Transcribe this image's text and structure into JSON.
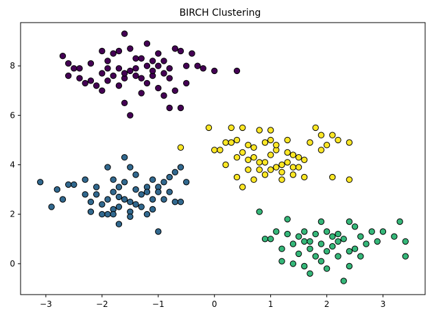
{
  "chart_data": {
    "type": "scatter",
    "title": "BIRCH Clustering",
    "xlabel": "",
    "ylabel": "",
    "xlim": [
      -3.45,
      3.75
    ],
    "ylim": [
      -1.25,
      9.75
    ],
    "xticks": [
      -3,
      -2,
      -1,
      0,
      1,
      2,
      3
    ],
    "yticks": [
      0,
      2,
      4,
      6,
      8
    ],
    "grid": false,
    "legend": "none",
    "series": [
      {
        "color": "#440154",
        "points": [
          [
            -2.7,
            8.4
          ],
          [
            -2.6,
            8.1
          ],
          [
            -2.5,
            7.9
          ],
          [
            -2.4,
            7.5
          ],
          [
            -2.2,
            7.4
          ],
          [
            -2.0,
            7.0
          ],
          [
            -1.9,
            7.4
          ],
          [
            -1.8,
            8.5
          ],
          [
            -1.6,
            9.3
          ],
          [
            -1.5,
            8.7
          ],
          [
            -1.4,
            7.9
          ],
          [
            -1.3,
            8.3
          ],
          [
            -1.2,
            8.9
          ],
          [
            -1.1,
            8.2
          ],
          [
            -1.0,
            8.5
          ],
          [
            -0.9,
            7.7
          ],
          [
            -0.8,
            7.9
          ],
          [
            -0.7,
            8.7
          ],
          [
            -0.6,
            8.6
          ],
          [
            -0.5,
            8.0
          ],
          [
            -0.4,
            8.5
          ],
          [
            -0.2,
            7.9
          ],
          [
            0.0,
            7.8
          ],
          [
            0.4,
            7.8
          ],
          [
            -1.5,
            6.0
          ],
          [
            -0.8,
            6.3
          ],
          [
            -1.0,
            7.1
          ],
          [
            -1.2,
            7.3
          ],
          [
            -1.6,
            7.5
          ],
          [
            -1.7,
            7.9
          ],
          [
            -2.0,
            8.6
          ],
          [
            -2.1,
            7.2
          ],
          [
            -2.3,
            7.3
          ],
          [
            -1.3,
            6.9
          ],
          [
            -0.6,
            6.3
          ],
          [
            -0.9,
            6.8
          ],
          [
            -1.1,
            7.6
          ],
          [
            -1.4,
            7.6
          ],
          [
            -1.8,
            7.6
          ],
          [
            -2.6,
            7.6
          ],
          [
            -1.9,
            7.9
          ],
          [
            -1.7,
            7.2
          ],
          [
            -1.5,
            7.8
          ],
          [
            -1.0,
            8.0
          ],
          [
            -0.7,
            7.0
          ],
          [
            -0.3,
            8.0
          ],
          [
            -1.2,
            8.0
          ],
          [
            -2.2,
            8.1
          ],
          [
            -1.6,
            6.5
          ],
          [
            -0.8,
            7.5
          ],
          [
            -1.4,
            8.3
          ],
          [
            -1.9,
            8.2
          ],
          [
            -2.0,
            7.7
          ],
          [
            -1.1,
            7.8
          ],
          [
            -0.5,
            7.3
          ],
          [
            -1.3,
            7.5
          ],
          [
            -0.9,
            8.2
          ],
          [
            -1.6,
            7.7
          ],
          [
            -2.4,
            7.9
          ],
          [
            -1.7,
            8.6
          ]
        ]
      },
      {
        "color": "#31688e",
        "points": [
          [
            -3.1,
            3.3
          ],
          [
            -2.9,
            2.3
          ],
          [
            -2.8,
            3.0
          ],
          [
            -2.7,
            2.6
          ],
          [
            -2.6,
            3.2
          ],
          [
            -2.5,
            3.2
          ],
          [
            -2.3,
            3.4
          ],
          [
            -2.2,
            2.5
          ],
          [
            -2.1,
            2.8
          ],
          [
            -2.0,
            2.4
          ],
          [
            -1.9,
            3.9
          ],
          [
            -1.8,
            2.9
          ],
          [
            -1.7,
            1.6
          ],
          [
            -1.6,
            4.3
          ],
          [
            -1.5,
            3.9
          ],
          [
            -1.4,
            2.4
          ],
          [
            -1.3,
            2.8
          ],
          [
            -1.2,
            3.1
          ],
          [
            -1.1,
            2.6
          ],
          [
            -1.0,
            1.3
          ],
          [
            -0.9,
            3.3
          ],
          [
            -0.8,
            2.9
          ],
          [
            -0.7,
            3.7
          ],
          [
            -0.6,
            3.9
          ],
          [
            -0.5,
            3.3
          ],
          [
            -0.6,
            2.5
          ],
          [
            -1.7,
            2.3
          ],
          [
            -1.8,
            3.4
          ],
          [
            -2.0,
            2.0
          ],
          [
            -1.5,
            2.1
          ],
          [
            -1.9,
            2.6
          ],
          [
            -1.6,
            3.3
          ],
          [
            -1.2,
            2.0
          ],
          [
            -0.8,
            3.5
          ],
          [
            -1.0,
            3.1
          ],
          [
            -1.4,
            3.0
          ],
          [
            -1.7,
            3.1
          ],
          [
            -2.1,
            3.1
          ],
          [
            -1.3,
            2.3
          ],
          [
            -0.9,
            2.6
          ],
          [
            -1.5,
            1.9
          ],
          [
            -1.8,
            2.2
          ],
          [
            -1.1,
            3.4
          ],
          [
            -1.6,
            2.6
          ],
          [
            -2.2,
            2.1
          ],
          [
            -1.9,
            2.0
          ],
          [
            -1.4,
            3.6
          ],
          [
            -1.0,
            2.9
          ],
          [
            -0.7,
            2.5
          ],
          [
            -1.2,
            2.9
          ],
          [
            -1.7,
            2.7
          ],
          [
            -2.3,
            2.8
          ],
          [
            -1.5,
            2.5
          ],
          [
            -1.1,
            2.2
          ],
          [
            -1.8,
            2.0
          ]
        ]
      },
      {
        "color": "#35b779",
        "points": [
          [
            0.8,
            2.1
          ],
          [
            0.9,
            1.0
          ],
          [
            1.1,
            1.3
          ],
          [
            1.2,
            0.6
          ],
          [
            1.3,
            1.8
          ],
          [
            1.4,
            0.0
          ],
          [
            1.5,
            1.1
          ],
          [
            1.6,
            0.9
          ],
          [
            1.7,
            -0.4
          ],
          [
            1.8,
            1.2
          ],
          [
            1.9,
            0.1
          ],
          [
            2.0,
            1.3
          ],
          [
            2.1,
            1.1
          ],
          [
            2.2,
            1.2
          ],
          [
            2.3,
            -0.7
          ],
          [
            2.4,
            0.5
          ],
          [
            2.5,
            1.5
          ],
          [
            2.6,
            0.3
          ],
          [
            2.7,
            0.8
          ],
          [
            2.8,
            1.3
          ],
          [
            2.9,
            0.9
          ],
          [
            3.0,
            1.3
          ],
          [
            3.2,
            1.1
          ],
          [
            3.3,
            1.7
          ],
          [
            3.4,
            0.3
          ],
          [
            3.4,
            0.9
          ],
          [
            2.4,
            -0.1
          ],
          [
            1.9,
            1.7
          ],
          [
            1.6,
            1.3
          ],
          [
            1.2,
            0.1
          ],
          [
            1.4,
            0.8
          ],
          [
            1.7,
            0.6
          ],
          [
            2.0,
            0.5
          ],
          [
            2.2,
            0.9
          ],
          [
            2.5,
            0.6
          ],
          [
            1.8,
            0.3
          ],
          [
            1.5,
            0.4
          ],
          [
            1.3,
            1.2
          ],
          [
            2.1,
            0.7
          ],
          [
            2.3,
            1.0
          ],
          [
            1.0,
            1.0
          ],
          [
            1.9,
            0.8
          ],
          [
            2.6,
            1.1
          ],
          [
            2.0,
            -0.2
          ],
          [
            1.6,
            -0.1
          ],
          [
            2.4,
            1.7
          ],
          [
            1.7,
            0.9
          ],
          [
            2.2,
            0.3
          ]
        ]
      },
      {
        "color": "#fde725",
        "points": [
          [
            -0.1,
            5.5
          ],
          [
            0.0,
            4.6
          ],
          [
            0.1,
            4.6
          ],
          [
            0.2,
            4.9
          ],
          [
            0.3,
            4.9
          ],
          [
            0.4,
            5.0
          ],
          [
            0.5,
            4.5
          ],
          [
            0.6,
            4.2
          ],
          [
            0.7,
            4.7
          ],
          [
            0.8,
            5.4
          ],
          [
            0.9,
            4.9
          ],
          [
            1.0,
            5.4
          ],
          [
            1.1,
            4.6
          ],
          [
            1.2,
            4.0
          ],
          [
            1.3,
            4.1
          ],
          [
            1.4,
            4.4
          ],
          [
            1.5,
            3.9
          ],
          [
            1.6,
            4.2
          ],
          [
            1.7,
            4.9
          ],
          [
            1.8,
            5.5
          ],
          [
            1.9,
            4.6
          ],
          [
            2.0,
            4.8
          ],
          [
            2.1,
            3.5
          ],
          [
            2.2,
            5.0
          ],
          [
            2.4,
            3.4
          ],
          [
            2.4,
            4.9
          ],
          [
            0.3,
            5.5
          ],
          [
            0.5,
            5.5
          ],
          [
            0.9,
            4.1
          ],
          [
            1.1,
            4.8
          ],
          [
            1.3,
            4.5
          ],
          [
            0.2,
            4.0
          ],
          [
            0.4,
            3.5
          ],
          [
            0.6,
            3.8
          ],
          [
            0.7,
            4.3
          ],
          [
            1.0,
            3.8
          ],
          [
            1.2,
            3.7
          ],
          [
            1.4,
            3.6
          ],
          [
            0.8,
            4.1
          ],
          [
            1.5,
            4.3
          ],
          [
            0.5,
            3.1
          ],
          [
            1.0,
            4.4
          ],
          [
            1.2,
            3.4
          ],
          [
            0.9,
            3.6
          ],
          [
            1.6,
            3.5
          ],
          [
            2.1,
            5.2
          ],
          [
            1.9,
            5.2
          ],
          [
            0.7,
            3.4
          ],
          [
            1.1,
            3.9
          ],
          [
            0.6,
            4.8
          ],
          [
            -0.6,
            4.7
          ],
          [
            1.3,
            5.0
          ],
          [
            0.4,
            4.3
          ],
          [
            1.0,
            5.0
          ],
          [
            0.8,
            3.8
          ],
          [
            1.4,
            3.9
          ]
        ]
      }
    ]
  }
}
